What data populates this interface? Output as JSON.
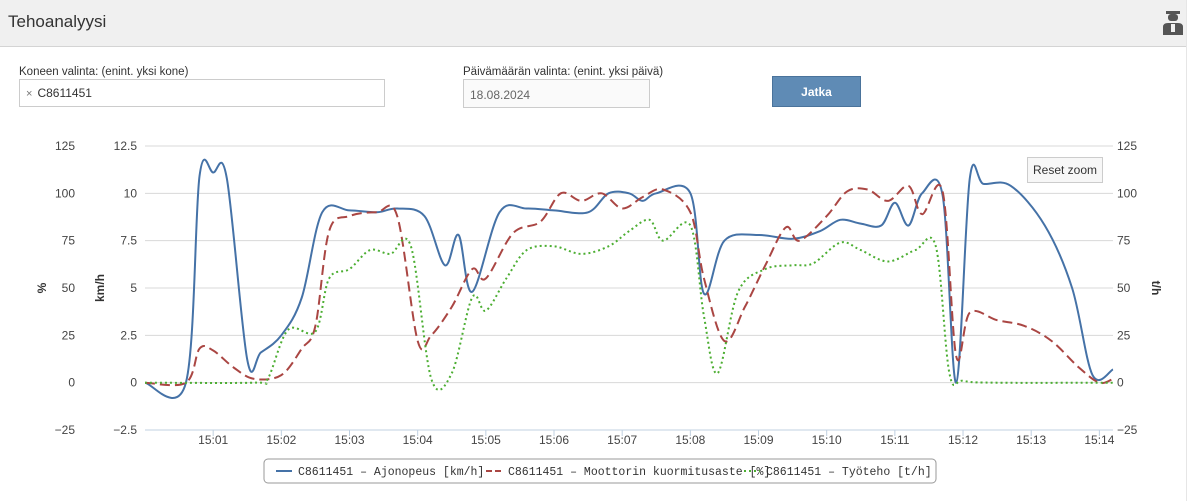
{
  "header": {
    "title": "Tehoanalyysi",
    "user_icon": "user-icon"
  },
  "machine": {
    "label": "Koneen valinta: (enint. yksi kone)",
    "remove_symbol": "×",
    "selected": "C8611451"
  },
  "date": {
    "label": "Päivämäärän valinta: (enint. yksi päivä)",
    "value": "18.08.2024"
  },
  "continue_button": {
    "label": "Jatka"
  },
  "reset_zoom": {
    "label": "Reset zoom"
  },
  "colors": {
    "speed": "#4572a7",
    "load": "#aa4643",
    "power": "#4cae32",
    "button": "#5f8bb5"
  },
  "chart_data": {
    "type": "line",
    "x_ticks": [
      "15:01",
      "15:02",
      "15:03",
      "15:04",
      "15:05",
      "15:06",
      "15:07",
      "15:08",
      "15:09",
      "15:10",
      "15:11",
      "15:12",
      "15:13",
      "15:14"
    ],
    "xlim": [
      "15:00.0",
      "15:14.2"
    ],
    "axes": {
      "percent": {
        "label": "%",
        "ylim": [
          -25,
          125
        ],
        "ticks": [
          "125",
          "100",
          "75",
          "50",
          "25",
          "0",
          "−25"
        ]
      },
      "speed": {
        "label": "km/h",
        "ylim": [
          -2.5,
          12.5
        ],
        "ticks": [
          "12.5",
          "10",
          "7.5",
          "5",
          "2.5",
          "0",
          "−2.5"
        ]
      },
      "power": {
        "label": "t/h",
        "ylim": [
          -25,
          125
        ],
        "ticks": [
          "125",
          "100",
          "75",
          "50",
          "25",
          "0",
          "−25"
        ]
      }
    },
    "grid": true,
    "legend_position": "bottom",
    "series": [
      {
        "name": "C8611451 – Ajonopeus [km/h]",
        "axis": "speed",
        "style": "solid",
        "color": "#4572a7",
        "points": [
          [
            "15:00.0",
            0
          ],
          [
            "15:00.6",
            0
          ],
          [
            "15:00.8",
            10.9
          ],
          [
            "15:01.0",
            11.1
          ],
          [
            "15:01.2",
            10.8
          ],
          [
            "15:01.5",
            1.2
          ],
          [
            "15:01.7",
            1.6
          ],
          [
            "15:02.0",
            2.5
          ],
          [
            "15:02.3",
            4.5
          ],
          [
            "15:02.6",
            9.0
          ],
          [
            "15:03.0",
            9.1
          ],
          [
            "15:03.4",
            9.0
          ],
          [
            "15:03.7",
            9.2
          ],
          [
            "15:04.1",
            8.8
          ],
          [
            "15:04.4",
            6.2
          ],
          [
            "15:04.6",
            7.8
          ],
          [
            "15:04.8",
            4.8
          ],
          [
            "15:05.2",
            9.0
          ],
          [
            "15:05.6",
            9.2
          ],
          [
            "15:06.0",
            9.1
          ],
          [
            "15:06.5",
            9.0
          ],
          [
            "15:06.8",
            10.0
          ],
          [
            "15:07.1",
            10.0
          ],
          [
            "15:07.3",
            9.6
          ],
          [
            "15:07.5",
            10.0
          ],
          [
            "15:08.0",
            10.0
          ],
          [
            "15:08.2",
            4.7
          ],
          [
            "15:08.5",
            7.5
          ],
          [
            "15:09.0",
            7.8
          ],
          [
            "15:09.5",
            7.6
          ],
          [
            "15:09.9",
            8.0
          ],
          [
            "15:10.2",
            8.6
          ],
          [
            "15:10.5",
            8.4
          ],
          [
            "15:10.8",
            8.3
          ],
          [
            "15:11.0",
            9.5
          ],
          [
            "15:11.2",
            8.3
          ],
          [
            "15:11.4",
            10.0
          ],
          [
            "15:11.7",
            9.9
          ],
          [
            "15:11.9",
            0
          ],
          [
            "15:12.1",
            10.8
          ],
          [
            "15:12.3",
            10.5
          ],
          [
            "15:12.7",
            10.4
          ],
          [
            "15:13.2",
            8.3
          ],
          [
            "15:13.6",
            5.0
          ],
          [
            "15:13.9",
            0.4
          ],
          [
            "15:14.2",
            0.7
          ]
        ]
      },
      {
        "name": "C8611451 – Moottorin kuormitusaste [%]",
        "axis": "percent",
        "style": "dashed",
        "color": "#aa4643",
        "points": [
          [
            "15:00.0",
            0
          ],
          [
            "15:00.6",
            0
          ],
          [
            "15:00.8",
            18
          ],
          [
            "15:01.0",
            17
          ],
          [
            "15:01.3",
            8
          ],
          [
            "15:01.6",
            2
          ],
          [
            "15:02.0",
            4
          ],
          [
            "15:02.3",
            18
          ],
          [
            "15:02.5",
            30
          ],
          [
            "15:02.7",
            80
          ],
          [
            "15:03.0",
            88
          ],
          [
            "15:03.4",
            90
          ],
          [
            "15:03.7",
            88
          ],
          [
            "15:04.0",
            22
          ],
          [
            "15:04.2",
            25
          ],
          [
            "15:04.5",
            40
          ],
          [
            "15:04.8",
            60
          ],
          [
            "15:05.0",
            55
          ],
          [
            "15:05.4",
            79
          ],
          [
            "15:05.8",
            85
          ],
          [
            "15:06.1",
            100
          ],
          [
            "15:06.4",
            96
          ],
          [
            "15:06.7",
            100
          ],
          [
            "15:07.0",
            92
          ],
          [
            "15:07.3",
            98
          ],
          [
            "15:07.6",
            102
          ],
          [
            "15:08.0",
            90
          ],
          [
            "15:08.2",
            55
          ],
          [
            "15:08.5",
            22
          ],
          [
            "15:08.8",
            40
          ],
          [
            "15:09.1",
            62
          ],
          [
            "15:09.4",
            82
          ],
          [
            "15:09.6",
            75
          ],
          [
            "15:10.0",
            88
          ],
          [
            "15:10.3",
            101
          ],
          [
            "15:10.6",
            102
          ],
          [
            "15:10.9",
            96
          ],
          [
            "15:11.2",
            104
          ],
          [
            "15:11.4",
            89
          ],
          [
            "15:11.7",
            101
          ],
          [
            "15:11.9",
            14
          ],
          [
            "15:12.1",
            37
          ],
          [
            "15:12.5",
            33
          ],
          [
            "15:12.9",
            30
          ],
          [
            "15:13.3",
            22
          ],
          [
            "15:13.7",
            8
          ],
          [
            "15:14.0",
            0
          ],
          [
            "15:14.2",
            2
          ]
        ]
      },
      {
        "name": "C8611451 – Työteho [t/h]",
        "axis": "power",
        "style": "dotted",
        "color": "#4cae32",
        "points": [
          [
            "15:00.0",
            0
          ],
          [
            "15:01.6",
            0
          ],
          [
            "15:01.8",
            2
          ],
          [
            "15:02.1",
            28
          ],
          [
            "15:02.5",
            27
          ],
          [
            "15:02.7",
            55
          ],
          [
            "15:03.0",
            60
          ],
          [
            "15:03.3",
            70
          ],
          [
            "15:03.6",
            68
          ],
          [
            "15:03.9",
            72
          ],
          [
            "15:04.2",
            2
          ],
          [
            "15:04.5",
            5
          ],
          [
            "15:04.8",
            45
          ],
          [
            "15:05.0",
            38
          ],
          [
            "15:05.3",
            55
          ],
          [
            "15:05.6",
            70
          ],
          [
            "15:06.0",
            72
          ],
          [
            "15:06.4",
            68
          ],
          [
            "15:06.8",
            72
          ],
          [
            "15:07.1",
            80
          ],
          [
            "15:07.4",
            86
          ],
          [
            "15:07.6",
            75
          ],
          [
            "15:08.0",
            83
          ],
          [
            "15:08.2",
            35
          ],
          [
            "15:08.4",
            5
          ],
          [
            "15:08.7",
            48
          ],
          [
            "15:09.1",
            60
          ],
          [
            "15:09.5",
            62
          ],
          [
            "15:09.8",
            63
          ],
          [
            "15:10.2",
            74
          ],
          [
            "15:10.5",
            70
          ],
          [
            "15:10.9",
            64
          ],
          [
            "15:11.3",
            70
          ],
          [
            "15:11.6",
            72
          ],
          [
            "15:11.8",
            5
          ],
          [
            "15:12.0",
            1
          ],
          [
            "15:12.5",
            0
          ],
          [
            "15:14.2",
            0
          ]
        ]
      }
    ]
  }
}
